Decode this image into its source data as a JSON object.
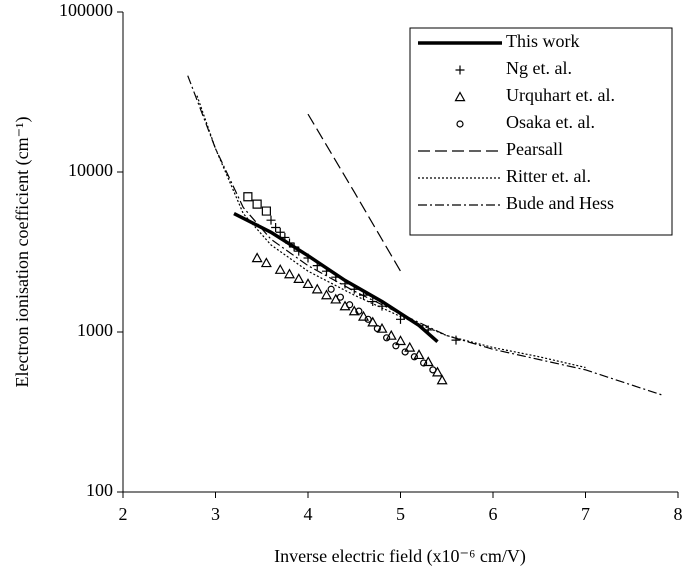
{
  "chart_data": {
    "type": "line",
    "xlabel": "Inverse electric field (x10⁻⁶ cm/V)",
    "ylabel": "Electron ionisation coefficient (cm⁻¹)",
    "xlim": [
      2,
      8
    ],
    "xticks": [
      2,
      3,
      4,
      5,
      6,
      7,
      8
    ],
    "ylim": [
      100,
      100000
    ],
    "yticks": [
      100,
      1000,
      10000,
      100000
    ],
    "log_y": true,
    "legend": "upper right",
    "series": [
      {
        "name": "This work",
        "color": "#000000",
        "line": "thick",
        "x": [
          3.2,
          3.6,
          4.0,
          4.4,
          4.8,
          5.2,
          5.4
        ],
        "values": [
          5500,
          4200,
          3000,
          2100,
          1550,
          1100,
          870
        ]
      },
      {
        "name": "Ng et. al.",
        "color": "#000000",
        "marker": "plus",
        "x": [
          3.6,
          3.65,
          3.7,
          3.75,
          3.8,
          3.85,
          3.9,
          4.0,
          4.1,
          4.2,
          4.3,
          4.4,
          4.5,
          4.6,
          4.7,
          4.8,
          5.0,
          5.3,
          5.6
        ],
        "values": [
          5000,
          4500,
          4200,
          3900,
          3600,
          3400,
          3200,
          2900,
          2600,
          2400,
          2200,
          2000,
          1850,
          1700,
          1550,
          1450,
          1200,
          1030,
          890
        ]
      },
      {
        "name": "Urquhart et. al.",
        "color": "#000000",
        "marker": "triangle",
        "x": [
          3.45,
          3.55,
          3.7,
          3.8,
          3.9,
          4.0,
          4.1,
          4.2,
          4.3,
          4.4,
          4.5,
          4.6,
          4.7,
          4.8,
          4.9,
          5.0,
          5.1,
          5.2,
          5.3,
          5.4,
          5.45
        ],
        "values": [
          2900,
          2700,
          2450,
          2300,
          2150,
          2000,
          1850,
          1700,
          1600,
          1450,
          1350,
          1250,
          1150,
          1050,
          950,
          880,
          800,
          720,
          650,
          560,
          500
        ]
      },
      {
        "name": "Osaka et. al.",
        "color": "#000000",
        "marker": "circle",
        "x": [
          4.25,
          4.35,
          4.45,
          4.55,
          4.65,
          4.75,
          4.85,
          4.95,
          5.05,
          5.15,
          5.25,
          5.35
        ],
        "values": [
          1850,
          1650,
          1480,
          1350,
          1200,
          1050,
          920,
          820,
          750,
          700,
          640,
          580
        ]
      },
      {
        "name": "Pearsall",
        "color": "#000000",
        "line": "dashed",
        "x": [
          4.0,
          4.5,
          5.0
        ],
        "values": [
          23000,
          7500,
          2400
        ]
      },
      {
        "name": "Ritter et. al.",
        "color": "#000000",
        "line": "dotted",
        "x": [
          2.8,
          3.0,
          3.3,
          3.6,
          4.0,
          4.5,
          5.0,
          5.5,
          6.0,
          6.5,
          7.0
        ],
        "values": [
          30000,
          14000,
          5500,
          3500,
          2400,
          1700,
          1250,
          950,
          800,
          700,
          600
        ]
      },
      {
        "name": "Bude and Hess",
        "color": "#000000",
        "line": "dashdot",
        "x": [
          2.7,
          3.0,
          3.3,
          3.6,
          4.0,
          4.5,
          5.0,
          5.5,
          6.0,
          7.0,
          7.85
        ],
        "values": [
          40000,
          14000,
          6000,
          3800,
          2600,
          1800,
          1300,
          950,
          780,
          580,
          400
        ]
      },
      {
        "color": "#000000",
        "marker": "square",
        "x": [
          3.35,
          3.45,
          3.55
        ],
        "values": [
          7000,
          6300,
          5700
        ]
      }
    ]
  }
}
